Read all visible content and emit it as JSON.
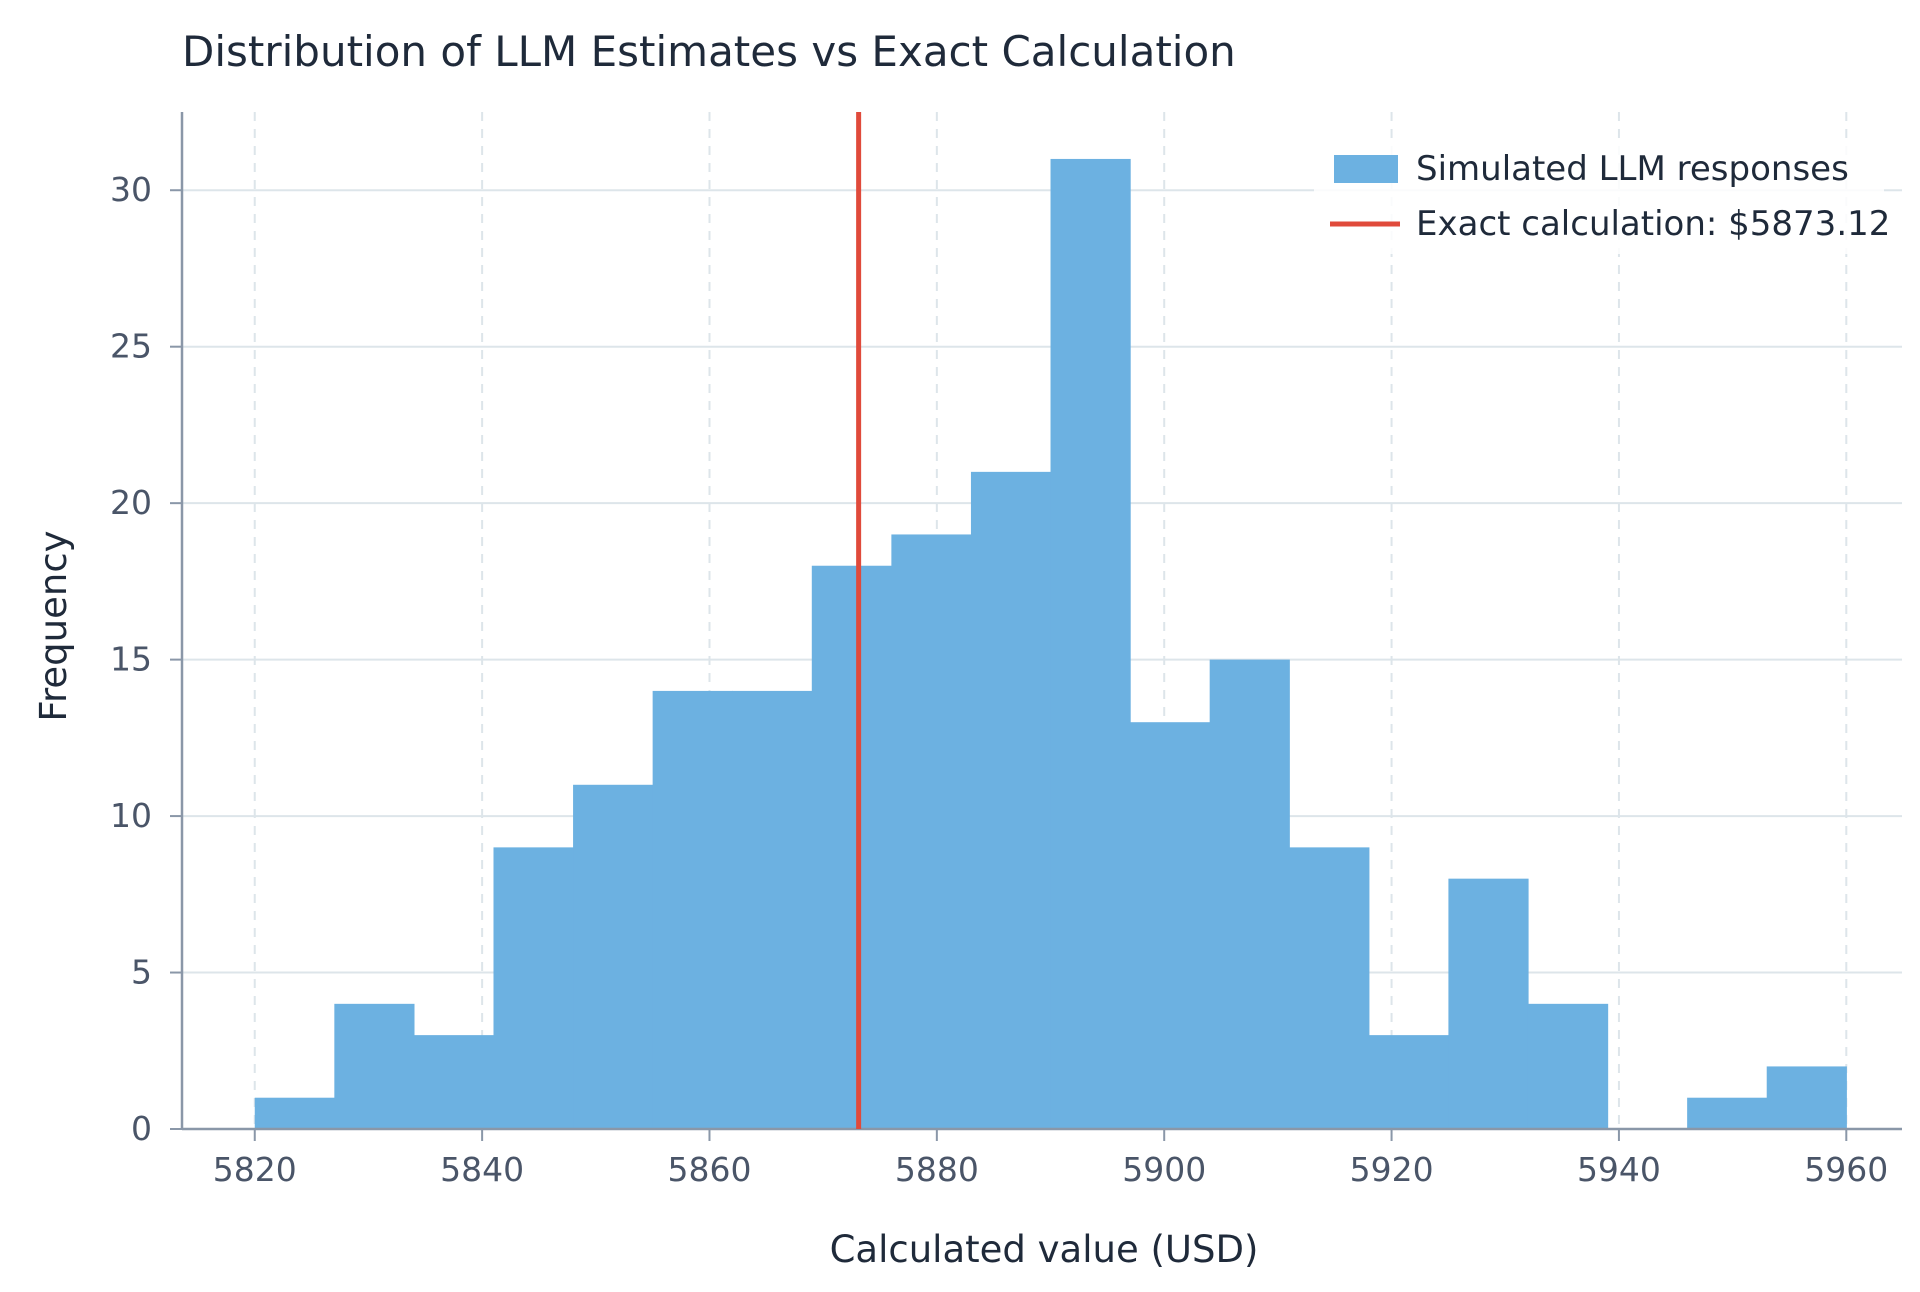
{
  "chart_data": {
    "type": "bar",
    "title": "Distribution of LLM Estimates vs Exact Calculation",
    "xlabel": "Calculated value (USD)",
    "ylabel": "Frequency",
    "xlim": [
      5813.6,
      5964.9
    ],
    "ylim": [
      0,
      32.5
    ],
    "x_ticks": [
      5820,
      5840,
      5860,
      5880,
      5900,
      5920,
      5940,
      5960
    ],
    "y_ticks": [
      0,
      5,
      10,
      15,
      20,
      25,
      30
    ],
    "grid": true,
    "legend_position": "top-right",
    "bin_edges": [
      5820,
      5827,
      5834,
      5841,
      5848,
      5855,
      5862,
      5869,
      5876,
      5883,
      5890,
      5897,
      5904,
      5911,
      5918,
      5925,
      5932,
      5939,
      5946,
      5953,
      5960
    ],
    "series": [
      {
        "name": "Simulated LLM responses",
        "type": "histogram",
        "color": "#6cb1e1",
        "values": [
          1,
          4,
          3,
          9,
          11,
          14,
          14,
          18,
          19,
          21,
          31,
          13,
          15,
          9,
          3,
          8,
          4,
          0,
          1,
          2
        ]
      },
      {
        "name": "Exact calculation: $5873.12",
        "type": "vline",
        "color": "#e04a3b",
        "x": 5873.12
      }
    ]
  }
}
